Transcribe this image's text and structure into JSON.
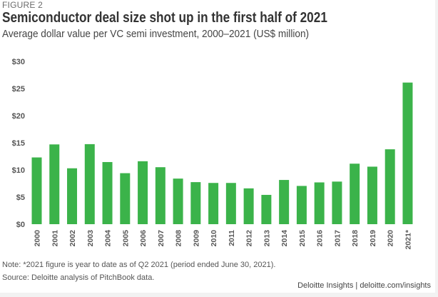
{
  "figure_label": "FIGURE 2",
  "colors": {
    "bar": "#3bb34a"
  },
  "chart_data": {
    "type": "bar",
    "title": "Semiconductor deal size shot up in the first half of 2021",
    "subtitle": "Average dollar value per VC semi investment, 2000–2021 (US$ million)",
    "xlabel": "",
    "ylabel": "",
    "ylim": [
      0,
      30
    ],
    "yticks": [
      0,
      5,
      10,
      15,
      20,
      25,
      30
    ],
    "ytick_labels": [
      "$0",
      "$5",
      "$10",
      "$15",
      "$20",
      "$25",
      "$30"
    ],
    "grid": false,
    "legend": "none",
    "categories": [
      "2000",
      "2001",
      "2002",
      "2003",
      "2004",
      "2005",
      "2006",
      "2007",
      "2008",
      "2009",
      "2010",
      "2011",
      "2012",
      "2013",
      "2014",
      "2015",
      "2016",
      "2017",
      "2018",
      "2019",
      "2020",
      "2021*"
    ],
    "values": [
      12.3,
      14.7,
      10.3,
      14.75,
      11.45,
      9.4,
      11.6,
      10.5,
      8.4,
      7.75,
      7.6,
      7.6,
      6.6,
      5.4,
      8.15,
      7.05,
      7.7,
      7.85,
      11.15,
      10.6,
      13.8,
      26.1
    ]
  },
  "note": "Note: *2021 figure is year to date as of Q2 2021 (period ended June 30, 2021).",
  "source": "Source: Deloitte analysis of PitchBook data.",
  "credit": "Deloitte Insights | deloitte.com/insights"
}
